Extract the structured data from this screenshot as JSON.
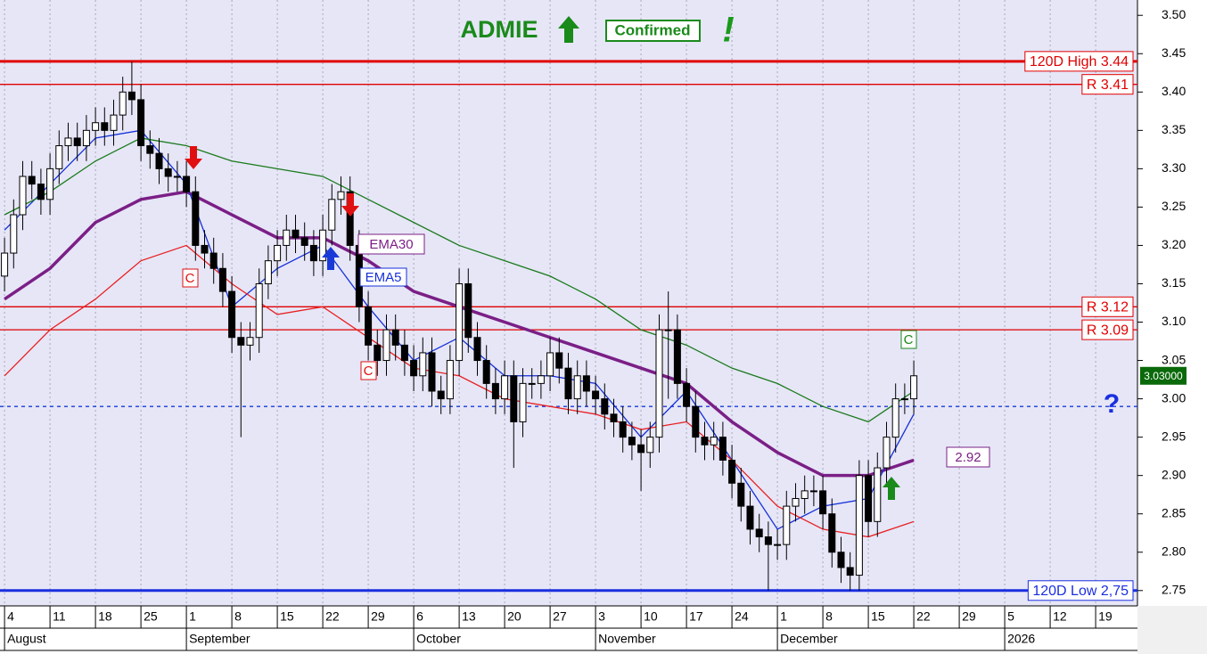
{
  "chart_data": {
    "type": "candlestick",
    "title": "ADMIE",
    "status": "Confirmed",
    "exclamation": "!",
    "question": "?",
    "signal_markers": [
      "C",
      "C",
      "C"
    ],
    "last_close_label": "3.03000",
    "grid": true,
    "xlim": [
      -0.5,
      124.6
    ],
    "ylim": [
      2.73,
      3.52
    ],
    "yticks": [
      {
        "value": 3.5,
        "label": "3.50"
      },
      3.45,
      {
        "value": 3.4,
        "label": "3.40"
      },
      3.35,
      {
        "value": 3.3,
        "label": "3.30"
      },
      3.25,
      {
        "value": 3.2,
        "label": "3.20"
      },
      3.15,
      {
        "value": 3.1,
        "label": "3.10"
      },
      3.05,
      {
        "value": 3,
        "label": "3.00"
      },
      2.95,
      {
        "value": 2.9,
        "label": "2.90"
      },
      2.85,
      {
        "value": 2.8,
        "label": "2.80"
      },
      2.75
    ],
    "xticks": [
      {
        "value": 0,
        "label": "4"
      },
      {
        "value": 5,
        "label": "11"
      },
      {
        "value": 10,
        "label": "18"
      },
      {
        "value": 15,
        "label": "25"
      },
      {
        "value": 20,
        "label": "1"
      },
      {
        "value": 25,
        "label": "8"
      },
      {
        "value": 30,
        "label": "15"
      },
      {
        "value": 35,
        "label": "22"
      },
      {
        "value": 40,
        "label": "29"
      },
      {
        "value": 45,
        "label": "6"
      },
      {
        "value": 50,
        "label": "13"
      },
      {
        "value": 55,
        "label": "20"
      },
      {
        "value": 60,
        "label": "27"
      },
      {
        "value": 65,
        "label": "3"
      },
      {
        "value": 70,
        "label": "10"
      },
      {
        "value": 75,
        "label": "17"
      },
      {
        "value": 80,
        "label": "24"
      },
      {
        "value": 85,
        "label": "1"
      },
      {
        "value": 90,
        "label": "8"
      },
      {
        "value": 95,
        "label": "15"
      },
      {
        "value": 100,
        "label": "22"
      },
      {
        "value": 105,
        "label": "29"
      },
      {
        "value": 110,
        "label": "5"
      },
      {
        "value": 115,
        "label": "12"
      },
      {
        "value": 120,
        "label": "19"
      }
    ],
    "month_ticks": [
      {
        "value": 0,
        "label": "August"
      },
      {
        "value": 20,
        "label": "September"
      },
      {
        "value": 45,
        "label": "October"
      },
      {
        "value": 65,
        "label": "November"
      },
      {
        "value": 85,
        "label": "December"
      },
      {
        "value": 110,
        "label": "2026"
      }
    ],
    "open": [
      3.16,
      3.19,
      3.24,
      3.29,
      3.28,
      3.26,
      3.3,
      3.33,
      3.34,
      3.33,
      3.35,
      3.36,
      3.35,
      3.37,
      3.4,
      3.39,
      3.33,
      3.32,
      3.3,
      3.29,
      3.29,
      3.27,
      3.2,
      3.19,
      3.17,
      3.14,
      3.08,
      3.07,
      3.08,
      3.15,
      3.18,
      3.2,
      3.22,
      3.21,
      3.2,
      3.18,
      3.22,
      3.26,
      3.27,
      3.2,
      3.12,
      3.07,
      3.05,
      3.09,
      3.07,
      3.05,
      3.03,
      3.06,
      3.01,
      3.0,
      3.05,
      3.15,
      3.08,
      3.05,
      3.02,
      3.0,
      3.03,
      2.97,
      3.02,
      3.02,
      3.03,
      3.06,
      3.04,
      3.0,
      3.03,
      3.01,
      3.0,
      2.98,
      2.97,
      2.95,
      2.94,
      2.93,
      2.95,
      3.09,
      3.09,
      3.02,
      2.99,
      2.95,
      2.94,
      2.95,
      2.92,
      2.89,
      2.86,
      2.83,
      2.82,
      2.81,
      2.81,
      2.86,
      2.87,
      2.88,
      2.88,
      2.85,
      2.8,
      2.78,
      2.77,
      2.9,
      2.84,
      2.91,
      2.95,
      3.0,
      3.0
    ],
    "high": [
      3.21,
      3.26,
      3.31,
      3.31,
      3.3,
      3.32,
      3.35,
      3.36,
      3.36,
      3.37,
      3.38,
      3.38,
      3.39,
      3.42,
      3.44,
      3.41,
      3.35,
      3.34,
      3.32,
      3.31,
      3.31,
      3.29,
      3.22,
      3.21,
      3.19,
      3.16,
      3.1,
      3.1,
      3.17,
      3.2,
      3.22,
      3.24,
      3.24,
      3.23,
      3.22,
      3.24,
      3.28,
      3.29,
      3.29,
      3.22,
      3.14,
      3.09,
      3.11,
      3.11,
      3.09,
      3.07,
      3.08,
      3.08,
      3.03,
      3.07,
      3.17,
      3.17,
      3.1,
      3.07,
      3.04,
      3.05,
      3.05,
      3.04,
      3.04,
      3.05,
      3.08,
      3.08,
      3.06,
      3.05,
      3.05,
      3.03,
      3.02,
      3.0,
      2.99,
      2.97,
      2.96,
      2.97,
      3.11,
      3.14,
      3.11,
      3.04,
      3.01,
      2.97,
      2.97,
      2.97,
      2.94,
      2.91,
      2.88,
      2.85,
      2.84,
      2.83,
      2.88,
      2.89,
      2.9,
      2.9,
      2.9,
      2.87,
      2.82,
      2.8,
      2.92,
      2.92,
      2.93,
      2.97,
      3.02,
      3.02,
      3.05
    ],
    "low": [
      3.14,
      3.17,
      3.22,
      3.26,
      3.24,
      3.24,
      3.28,
      3.31,
      3.31,
      3.31,
      3.33,
      3.33,
      3.33,
      3.35,
      3.37,
      3.31,
      3.3,
      3.28,
      3.27,
      3.27,
      3.25,
      3.18,
      3.17,
      3.15,
      3.12,
      3.06,
      2.95,
      3.05,
      3.06,
      3.13,
      3.16,
      3.18,
      3.19,
      3.18,
      3.16,
      3.16,
      3.2,
      3.24,
      3.18,
      3.1,
      3.05,
      3.03,
      3.03,
      3.05,
      3.03,
      3.01,
      3.01,
      2.99,
      2.98,
      2.98,
      3.03,
      3.06,
      3.03,
      3.0,
      2.98,
      2.98,
      2.91,
      2.95,
      3.0,
      3.0,
      3.01,
      3.02,
      2.98,
      2.98,
      2.99,
      2.98,
      2.96,
      2.95,
      2.93,
      2.92,
      2.88,
      2.91,
      2.93,
      3.0,
      3.0,
      2.97,
      2.93,
      2.92,
      2.92,
      2.9,
      2.87,
      2.84,
      2.81,
      2.8,
      2.75,
      2.79,
      2.79,
      2.84,
      2.85,
      2.86,
      2.83,
      2.78,
      2.76,
      2.75,
      2.75,
      2.82,
      2.82,
      2.89,
      2.93,
      2.98,
      2.98
    ],
    "close": [
      3.19,
      3.24,
      3.29,
      3.28,
      3.26,
      3.3,
      3.33,
      3.34,
      3.33,
      3.35,
      3.36,
      3.35,
      3.37,
      3.4,
      3.39,
      3.33,
      3.32,
      3.3,
      3.29,
      3.29,
      3.27,
      3.2,
      3.19,
      3.17,
      3.14,
      3.08,
      3.07,
      3.08,
      3.15,
      3.18,
      3.2,
      3.22,
      3.21,
      3.2,
      3.18,
      3.22,
      3.26,
      3.27,
      3.2,
      3.12,
      3.07,
      3.05,
      3.09,
      3.07,
      3.05,
      3.03,
      3.06,
      3.01,
      3.0,
      3.05,
      3.15,
      3.08,
      3.05,
      3.02,
      3.0,
      3.03,
      2.97,
      3.02,
      3.02,
      3.03,
      3.06,
      3.04,
      3.0,
      3.03,
      3.01,
      3.0,
      2.98,
      2.97,
      2.95,
      2.94,
      2.93,
      2.95,
      3.09,
      3.09,
      3.02,
      2.99,
      2.95,
      2.94,
      2.95,
      2.92,
      2.89,
      2.86,
      2.83,
      2.82,
      2.81,
      2.81,
      2.86,
      2.87,
      2.88,
      2.88,
      2.85,
      2.8,
      2.78,
      2.77,
      2.9,
      2.84,
      2.91,
      2.95,
      3.0,
      3.0,
      3.03
    ],
    "line_x": [
      0,
      5,
      10,
      15,
      20,
      25,
      30,
      35,
      40,
      45,
      50,
      55,
      60,
      65,
      70,
      75,
      80,
      85,
      90,
      95,
      100
    ],
    "series": [
      {
        "name": "EMA30",
        "color": "#7b1f86",
        "thick": true,
        "values": [
          3.13,
          3.17,
          3.23,
          3.26,
          3.27,
          3.24,
          3.21,
          3.21,
          3.18,
          3.14,
          3.12,
          3.1,
          3.08,
          3.06,
          3.04,
          3.02,
          2.97,
          2.93,
          2.9,
          2.9,
          2.92
        ]
      },
      {
        "name": "EMA5",
        "color": "#1530d8",
        "values": [
          3.22,
          3.28,
          3.34,
          3.35,
          3.28,
          3.12,
          3.17,
          3.2,
          3.12,
          3.05,
          3.08,
          3.03,
          3.03,
          3.02,
          2.95,
          3.01,
          2.92,
          2.83,
          2.86,
          2.87,
          2.98
        ]
      },
      {
        "color": "#1a7a1a",
        "values": [
          3.24,
          3.27,
          3.31,
          3.34,
          3.33,
          3.31,
          3.3,
          3.29,
          3.26,
          3.23,
          3.2,
          3.18,
          3.16,
          3.13,
          3.09,
          3.07,
          3.04,
          3.02,
          2.99,
          2.97,
          3.01
        ]
      },
      {
        "color": "#e82020",
        "values": [
          3.03,
          3.09,
          3.13,
          3.18,
          3.2,
          3.15,
          3.11,
          3.12,
          3.08,
          3.04,
          3.03,
          3.0,
          2.99,
          2.98,
          2.96,
          2.97,
          2.92,
          2.86,
          2.83,
          2.82,
          2.84
        ]
      }
    ],
    "levels": [
      {
        "value": 3.44,
        "label": "120D High 3.44",
        "color": "#e00000",
        "thick": true
      },
      {
        "value": 3.41,
        "label": "R 3.41",
        "color": "#e00000"
      },
      {
        "value": 3.12,
        "label": "R 3.12",
        "color": "#e00000"
      },
      {
        "value": 3.09,
        "label": "R 3.09",
        "color": "#e00000"
      },
      {
        "value": 2.99,
        "color": "#1a3ad8",
        "dashed": true
      },
      {
        "value": 2.75,
        "label": "120D Low 2,75",
        "color": "#1a2ee0",
        "thick": true
      }
    ]
  }
}
